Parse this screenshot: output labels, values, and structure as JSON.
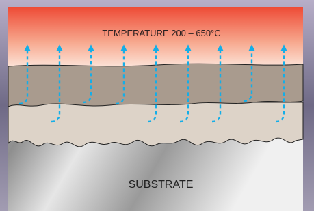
{
  "diagram": {
    "top_label": "TEMPERATURE 200 – 650°C",
    "bottom_label": "SUBSTRATE"
  }
}
